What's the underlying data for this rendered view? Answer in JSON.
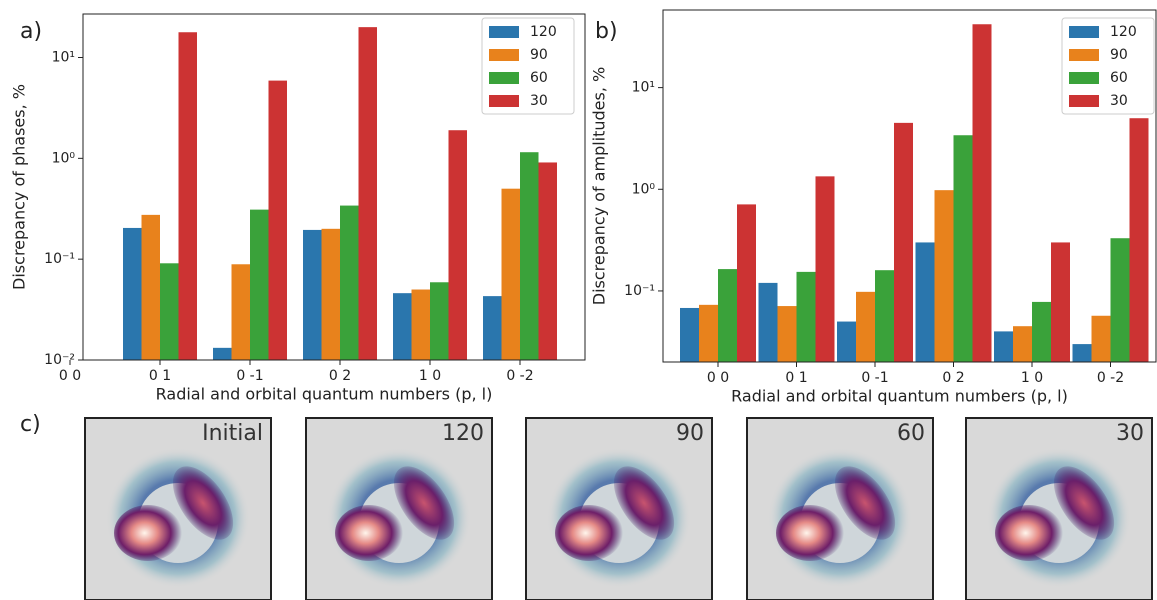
{
  "chart_data": [
    {
      "type": "bar",
      "label": "a)",
      "y_label": "Discrepancy of phases, %",
      "x_label": "Radial and orbital quantum numbers (p, l)",
      "categories": [
        "0 0",
        "0 1",
        "0 -1",
        "0 2",
        "1 0",
        "0 -2"
      ],
      "series": [
        {
          "name": "120",
          "color": "#2a76ad",
          "values": [
            null,
            0.204,
            0.0132,
            0.195,
            0.046,
            0.043
          ]
        },
        {
          "name": "90",
          "color": "#e8821c",
          "values": [
            null,
            0.275,
            0.089,
            0.2,
            0.05,
            0.5
          ]
        },
        {
          "name": "60",
          "color": "#3aa23a",
          "values": [
            null,
            0.091,
            0.31,
            0.34,
            0.059,
            1.15
          ]
        },
        {
          "name": "30",
          "color": "#cc3333",
          "values": [
            null,
            17.8,
            5.9,
            20,
            1.9,
            0.91
          ]
        }
      ],
      "log_scale": true,
      "ylim": [
        0.01,
        27
      ],
      "yticks": [
        {
          "value": 0.01,
          "label": "10⁻²"
        },
        {
          "value": 0.1,
          "label": "10⁻¹"
        },
        {
          "value": 1,
          "label": "10⁰"
        },
        {
          "value": 10,
          "label": "10¹"
        }
      ],
      "legend": "upper right"
    },
    {
      "type": "bar",
      "label": "b)",
      "y_label": "Discrepancy of amplitudes, %",
      "x_label": "Radial and orbital quantum numbers (p, l)",
      "categories": [
        "0 0",
        "0 1",
        "0 -1",
        "0 2",
        "1 0",
        "0 -2"
      ],
      "series": [
        {
          "name": "120",
          "color": "#2a76ad",
          "values": [
            0.068,
            0.12,
            0.05,
            0.3,
            0.04,
            0.03
          ]
        },
        {
          "name": "90",
          "color": "#e8821c",
          "values": [
            0.073,
            0.071,
            0.098,
            0.98,
            0.045,
            0.057
          ]
        },
        {
          "name": "60",
          "color": "#3aa23a",
          "values": [
            0.164,
            0.154,
            0.16,
            3.4,
            0.078,
            0.33
          ]
        },
        {
          "name": "30",
          "color": "#cc3333",
          "values": [
            0.71,
            1.34,
            4.5,
            42,
            0.3,
            5.0
          ]
        }
      ],
      "log_scale": true,
      "ylim": [
        0.02,
        58
      ],
      "yticks": [
        {
          "value": 0.1,
          "label": "10⁻¹"
        },
        {
          "value": 1,
          "label": "10⁰"
        },
        {
          "value": 10,
          "label": "10¹"
        }
      ],
      "legend": "upper right"
    }
  ],
  "images": {
    "label": "c)",
    "titles": [
      "Initial",
      "120",
      "90",
      "60",
      "30"
    ]
  }
}
